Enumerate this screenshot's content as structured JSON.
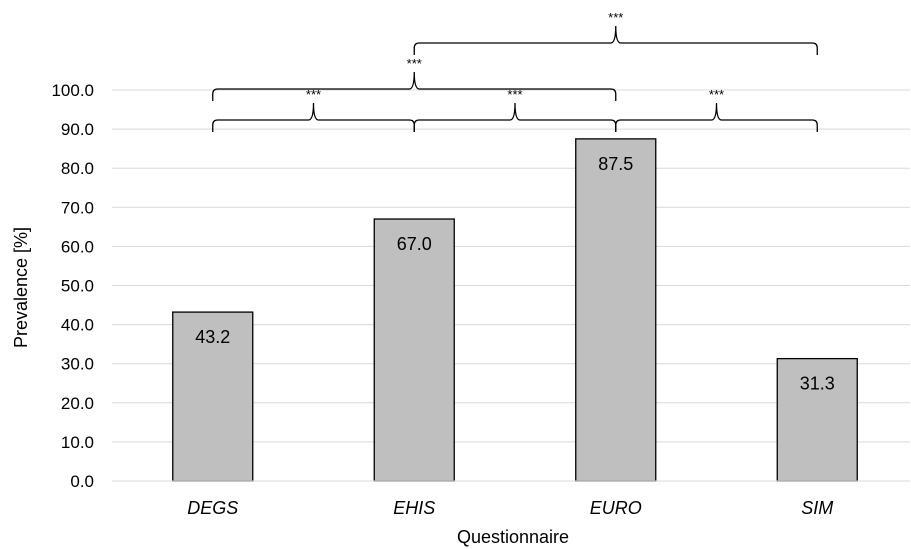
{
  "chart_data": {
    "type": "bar",
    "categories": [
      "DEGS",
      "EHIS",
      "EURO",
      "SIM"
    ],
    "values": [
      43.2,
      67.0,
      87.5,
      31.3
    ],
    "value_labels": [
      "43.2",
      "67.0",
      "87.5",
      "31.3"
    ],
    "title": "",
    "xlabel": "Questionnaire",
    "ylabel": "Prevalence [%]",
    "ylim": [
      0,
      100
    ],
    "yticks": [
      "0.0",
      "10.0",
      "20.0",
      "30.0",
      "40.0",
      "50.0",
      "60.0",
      "70.0",
      "80.0",
      "90.0",
      "100.0"
    ],
    "grid": true,
    "legend": "none",
    "bar_color": "#bfbfbf",
    "bar_edge_color": "#000000",
    "grid_color": "#d9d9d9",
    "significance": [
      {
        "from": "DEGS",
        "to": "EHIS",
        "label": "***",
        "level": 1
      },
      {
        "from": "EHIS",
        "to": "EURO",
        "label": "***",
        "level": 1
      },
      {
        "from": "EURO",
        "to": "SIM",
        "label": "***",
        "level": 1
      },
      {
        "from": "DEGS",
        "to": "EURO",
        "label": "***",
        "level": 2
      },
      {
        "from": "EHIS",
        "to": "SIM",
        "label": "***",
        "level": 3
      }
    ]
  }
}
